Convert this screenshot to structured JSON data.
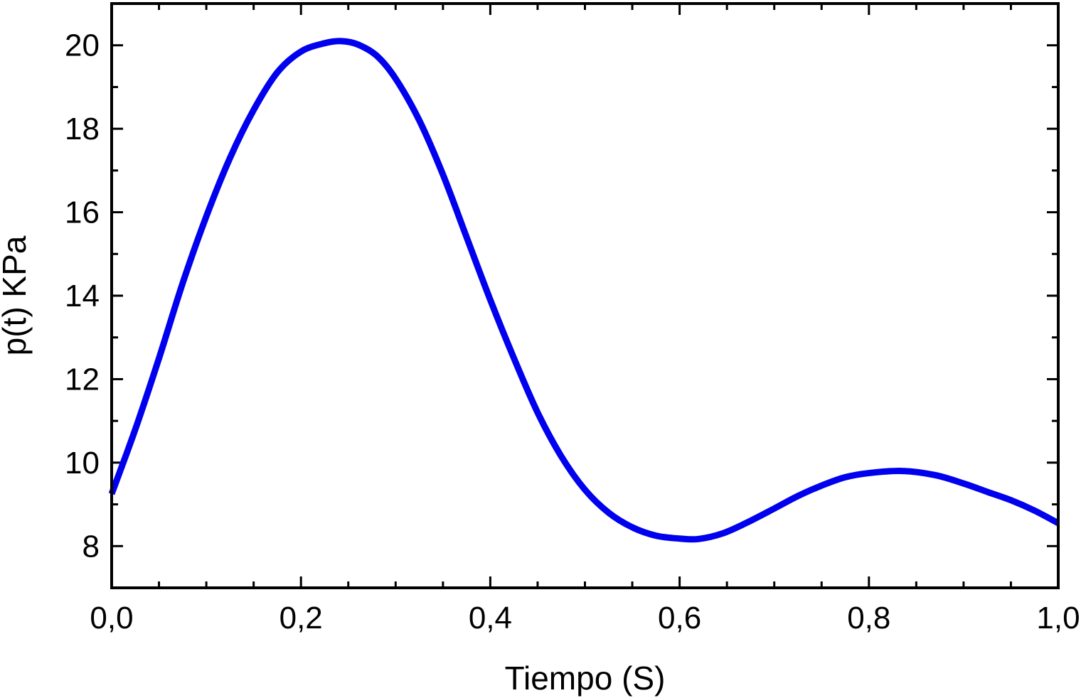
{
  "chart_data": {
    "type": "line",
    "title": "",
    "xlabel": "Tiempo  (S)",
    "ylabel": "p(t)  KPa",
    "xlim": [
      0,
      1
    ],
    "ylim": [
      7,
      21
    ],
    "grid": false,
    "x_ticks": [
      0,
      0.2,
      0.4,
      0.6,
      0.8,
      1.0
    ],
    "x_tick_labels": [
      "0,0",
      "0,2",
      "0,4",
      "0,6",
      "0,8",
      "1,0"
    ],
    "y_ticks": [
      8,
      10,
      12,
      14,
      16,
      18,
      20
    ],
    "y_tick_labels": [
      "8",
      "10",
      "12",
      "14",
      "16",
      "18",
      "20"
    ],
    "series": [
      {
        "color": "#0000ee",
        "x": [
          0,
          0.025,
          0.05,
          0.075,
          0.1,
          0.125,
          0.15,
          0.175,
          0.2,
          0.225,
          0.243,
          0.26,
          0.28,
          0.3,
          0.325,
          0.35,
          0.375,
          0.4,
          0.425,
          0.45,
          0.475,
          0.5,
          0.525,
          0.55,
          0.575,
          0.6,
          0.62,
          0.645,
          0.67,
          0.7,
          0.725,
          0.75,
          0.775,
          0.8,
          0.835,
          0.87,
          0.9,
          0.925,
          0.95,
          0.975,
          1.0
        ],
        "y": [
          9.25,
          10.8,
          12.5,
          14.3,
          15.9,
          17.3,
          18.45,
          19.35,
          19.85,
          20.05,
          20.1,
          20.02,
          19.75,
          19.2,
          18.2,
          16.9,
          15.4,
          13.9,
          12.5,
          11.2,
          10.15,
          9.35,
          8.8,
          8.45,
          8.25,
          8.18,
          8.17,
          8.3,
          8.55,
          8.9,
          9.2,
          9.45,
          9.65,
          9.75,
          9.8,
          9.7,
          9.5,
          9.3,
          9.1,
          8.85,
          8.55
        ]
      }
    ]
  }
}
